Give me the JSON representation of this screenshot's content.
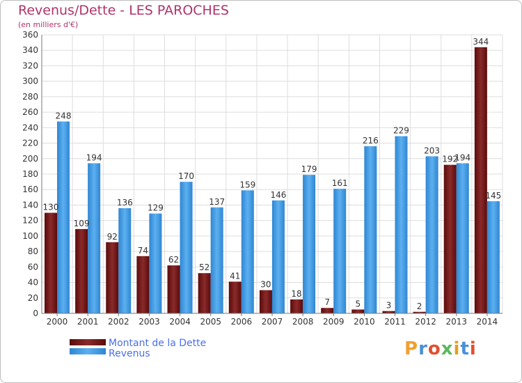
{
  "title": "Revenus/Dette - LES PAROCHES",
  "subtitle": "(en milliers d'€)",
  "logo": {
    "text": "Proxiti",
    "letters": [
      "P",
      "r",
      "o",
      "x",
      "i",
      "t",
      "i"
    ],
    "colors": [
      "#f0a030",
      "#4a90d9",
      "#e05030",
      "#5cb85c",
      "#e0a020",
      "#4a90d9",
      "#e05030"
    ]
  },
  "legend": {
    "placement": "bottom-left",
    "items": [
      {
        "label": "Montant de la Dette",
        "color": "#7a1a1a"
      },
      {
        "label": "Revenus",
        "color": "#4aa3e8"
      }
    ]
  },
  "chart_data": {
    "type": "bar",
    "title": "Revenus/Dette - LES PAROCHES",
    "subtitle": "(en milliers d'€)",
    "xlabel": "",
    "ylabel": "",
    "ylim": [
      0,
      360
    ],
    "ytick_step": 20,
    "grid": true,
    "categories": [
      "2000",
      "2001",
      "2002",
      "2003",
      "2004",
      "2005",
      "2006",
      "2007",
      "2008",
      "2009",
      "2010",
      "2011",
      "2012",
      "2013",
      "2014"
    ],
    "series": [
      {
        "name": "Montant de la Dette",
        "color": "#7a1a1a",
        "values": [
          130,
          109,
          92,
          74,
          62,
          52,
          41,
          30,
          18,
          7,
          5,
          3,
          2,
          192,
          344
        ]
      },
      {
        "name": "Revenus",
        "color": "#4aa3e8",
        "values": [
          248,
          194,
          136,
          129,
          170,
          137,
          159,
          146,
          179,
          161,
          216,
          229,
          203,
          194,
          145
        ]
      }
    ]
  }
}
